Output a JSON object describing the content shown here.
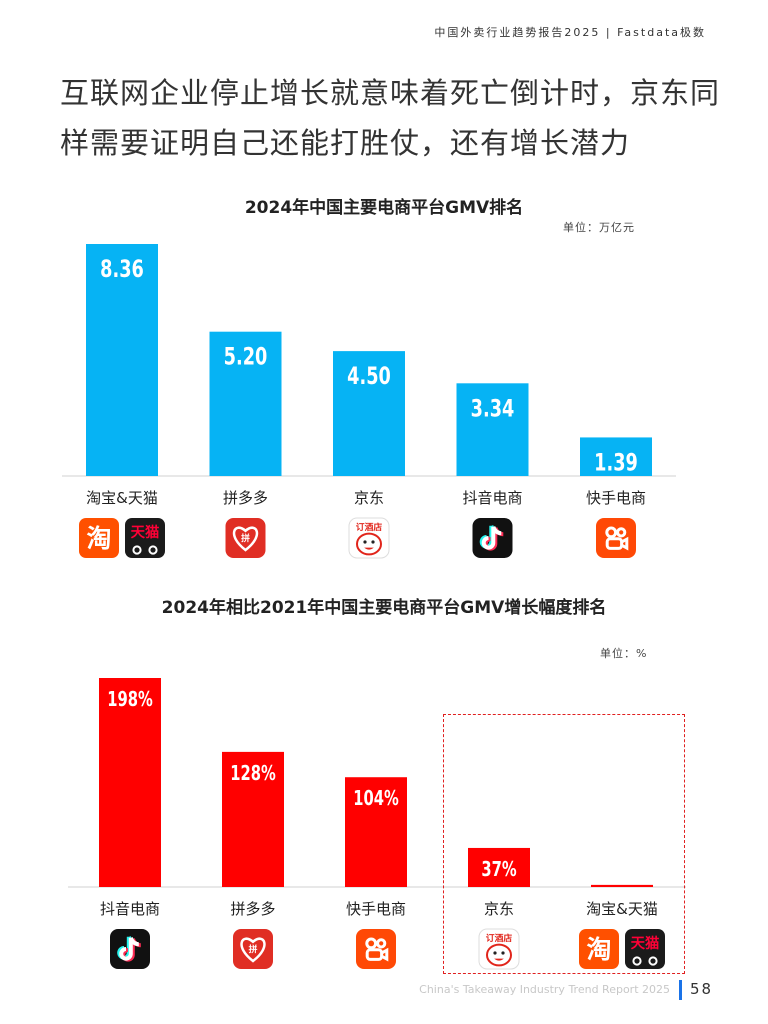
{
  "header": {
    "brand": "中国外卖行业趋势报告2025 | Fastdata极数"
  },
  "headline": "互联网企业停止增长就意味着死亡倒计时，京东同样需要证明自己还能打胜仗，还有增长潜力",
  "chart_data": [
    {
      "type": "bar",
      "title": "2024年中国主要电商平台GMV排名",
      "unit": "单位：万亿元",
      "categories": [
        "淘宝&天猫",
        "拼多多",
        "京东",
        "抖音电商",
        "快手电商"
      ],
      "values": [
        8.36,
        5.2,
        4.5,
        3.34,
        1.39
      ],
      "value_labels": [
        "8.36",
        "5.20",
        "4.50",
        "3.34",
        "1.39"
      ],
      "ylim": [
        0,
        8.36
      ],
      "color": "#06b3f4",
      "logos": [
        [
          "taobao-logo",
          "tmall-logo"
        ],
        [
          "pinduoduo-logo"
        ],
        [
          "jd-logo"
        ],
        [
          "douyin-logo"
        ],
        [
          "kuaishou-logo"
        ]
      ]
    },
    {
      "type": "bar",
      "title": "2024年相比2021年中国主要电商平台GMV增长幅度排名",
      "unit": "单位：%",
      "categories": [
        "抖音电商",
        "拼多多",
        "快手电商",
        "京东",
        "淘宝&天猫"
      ],
      "values": [
        198,
        128,
        104,
        37,
        2
      ],
      "value_labels": [
        "198%",
        "128%",
        "104%",
        "37%",
        ""
      ],
      "ylim": [
        0,
        198
      ],
      "color": "#ff0000",
      "logos": [
        [
          "douyin-logo"
        ],
        [
          "pinduoduo-logo"
        ],
        [
          "kuaishou-logo"
        ],
        [
          "jd-logo"
        ],
        [
          "taobao-logo",
          "tmall-logo"
        ]
      ]
    }
  ],
  "logo_text": {
    "taobao": "淘",
    "tmall": "天猫",
    "pinduoduo": "拼",
    "jd": "订酒店"
  },
  "footer": {
    "report": "China's Takeaway Industry Trend Report 2025",
    "page": "58"
  }
}
